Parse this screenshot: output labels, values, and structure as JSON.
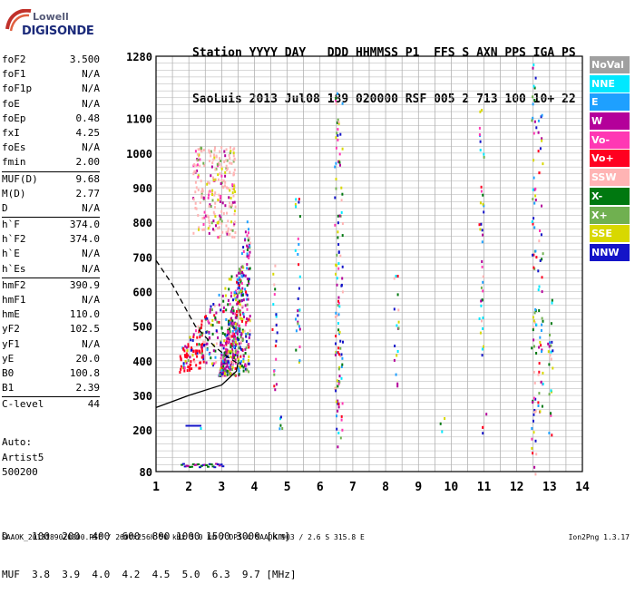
{
  "logo": {
    "line1": "Lowell",
    "line2": "DIGISONDE"
  },
  "header": {
    "row1": "Station YYYY DAY   DDD HHMMSS P1  FFS S AXN PPS IGA PS",
    "row2": "SaoLuis 2013 Jul08 189 020000 RSF 005 2 713 100 10+ 22"
  },
  "params": [
    {
      "name": "foF2",
      "value": "3.500"
    },
    {
      "name": "foF1",
      "value": "N/A"
    },
    {
      "name": "foF1p",
      "value": "N/A"
    },
    {
      "name": "foE",
      "value": "N/A"
    },
    {
      "name": "foEp",
      "value": "0.48"
    },
    {
      "name": "fxI",
      "value": "4.25"
    },
    {
      "name": "foEs",
      "value": "N/A"
    },
    {
      "name": "fmin",
      "value": "2.00"
    },
    {
      "name": "MUF(D)",
      "value": "9.68"
    },
    {
      "name": "M(D)",
      "value": "2.77"
    },
    {
      "name": "D",
      "value": "N/A"
    },
    {
      "name": "h`F",
      "value": "374.0"
    },
    {
      "name": "h`F2",
      "value": "374.0"
    },
    {
      "name": "h`E",
      "value": "N/A"
    },
    {
      "name": "h`Es",
      "value": "N/A"
    },
    {
      "name": "hmF2",
      "value": "390.9"
    },
    {
      "name": "hmF1",
      "value": "N/A"
    },
    {
      "name": "hmE",
      "value": "110.0"
    },
    {
      "name": "yF2",
      "value": "102.5"
    },
    {
      "name": "yF1",
      "value": "N/A"
    },
    {
      "name": "yE",
      "value": "20.0"
    },
    {
      "name": "B0",
      "value": "100.8"
    },
    {
      "name": "B1",
      "value": "2.39"
    },
    {
      "name": "C-level",
      "value": "44"
    }
  ],
  "auto": {
    "line1": "Auto:",
    "line2": "Artist5",
    "line3": "500200"
  },
  "scale": {
    "row1": "D    100  200  400  600  800 1000 1500 3000 [km]",
    "row2": "MUF  3.8  3.9  4.0  4.2  4.5  5.0  6.3  9.7 [MHz]"
  },
  "footer": {
    "left": "SAAOK_2013189020000.RSF / 260fx256h 50 kHz 5.0 km / DPS-4 SAAOK 903 / 2.6 S 315.8 E",
    "right": "Ion2Png 1.3.17"
  },
  "legend": [
    {
      "label": "NoVal",
      "color": "#a0a0a0"
    },
    {
      "label": "NNE",
      "color": "#00e8ff"
    },
    {
      "label": "E",
      "color": "#1ea0ff"
    },
    {
      "label": "W",
      "color": "#b4009a"
    },
    {
      "label": "Vo-",
      "color": "#ff38b4"
    },
    {
      "label": "Vo+",
      "color": "#ff0020"
    },
    {
      "label": "SSW",
      "color": "#ffb4b4"
    },
    {
      "label": "X-",
      "color": "#007810"
    },
    {
      "label": "X+",
      "color": "#70b050"
    },
    {
      "label": "SSE",
      "color": "#d8d800"
    },
    {
      "label": "NNW",
      "color": "#1414c8"
    }
  ],
  "chart_data": {
    "type": "scatter",
    "xlim": [
      1,
      14
    ],
    "ylim": [
      80,
      1280
    ],
    "x_ticks": [
      1,
      2,
      3,
      4,
      5,
      6,
      7,
      8,
      9,
      10,
      11,
      12,
      13,
      14
    ],
    "y_ticks": [
      80,
      200,
      300,
      400,
      500,
      600,
      700,
      800,
      900,
      1000,
      1100,
      1280
    ],
    "grid": true,
    "traces": [
      {
        "name": "O-trace",
        "style": "solid",
        "points": [
          [
            1,
            265
          ],
          [
            2,
            300
          ],
          [
            3,
            330
          ],
          [
            3.45,
            370
          ],
          [
            3.5,
            395
          ]
        ]
      },
      {
        "name": "X-trace",
        "style": "dashed",
        "points": [
          [
            1,
            690
          ],
          [
            1.5,
            620
          ],
          [
            2.2,
            500
          ],
          [
            2.8,
            440
          ],
          [
            3.2,
            410
          ],
          [
            3.45,
            395
          ]
        ]
      }
    ]
  }
}
